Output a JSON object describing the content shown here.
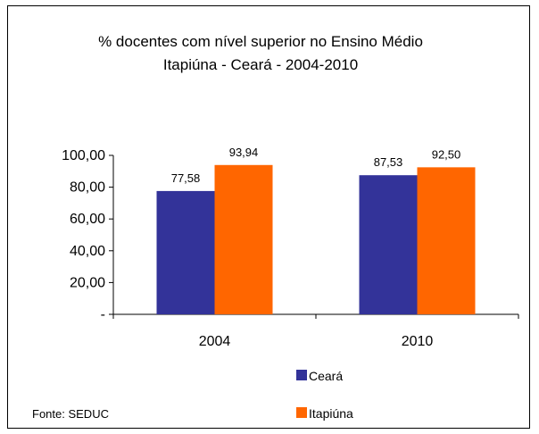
{
  "chart_data": {
    "type": "bar",
    "title": "% docentes com nível  superior no Ensino Médio",
    "subtitle": "Itapiúna  -  Ceará - 2004-2010",
    "categories": [
      "2004",
      "2010"
    ],
    "series": [
      {
        "name": "Ceará",
        "values": [
          77.58,
          87.53
        ],
        "labels": [
          "77,58",
          "87,53"
        ],
        "color": "#333399"
      },
      {
        "name": "Itapiúna",
        "values": [
          93.94,
          92.5
        ],
        "labels": [
          "93,94",
          "92,50"
        ],
        "color": "#FF6600"
      }
    ],
    "ylim": [
      0,
      100
    ],
    "ytick_values": [
      0,
      20,
      40,
      60,
      80,
      100
    ],
    "ytick_labels": [
      "-",
      "20,00",
      "40,00",
      "60,00",
      "80,00",
      "100,00"
    ],
    "grid": false,
    "legend_position": "bottom-right"
  },
  "source_text": "Fonte: SEDUC"
}
